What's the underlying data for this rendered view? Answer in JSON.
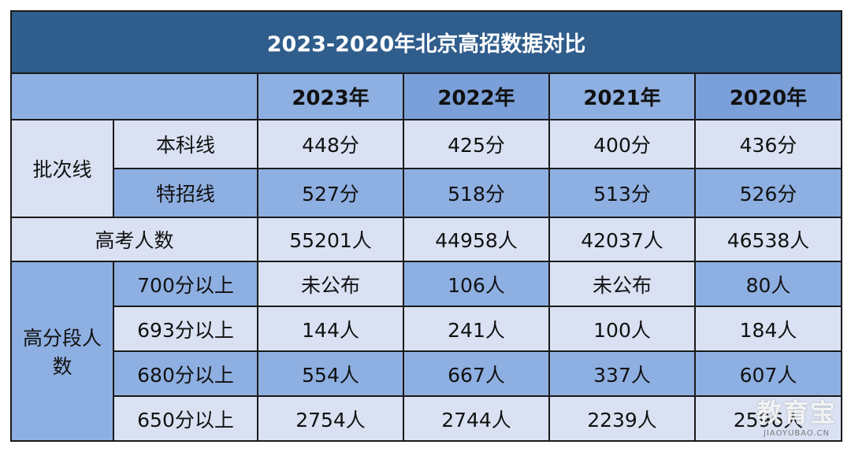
{
  "title": "2023-2020年北京高招数据对比",
  "years": [
    "2023年",
    "2022年",
    "2021年",
    "2020年"
  ],
  "batch_group": "批次线",
  "rows": {
    "benke": {
      "label": "本科线",
      "values": [
        "448分",
        "425分",
        "400分",
        "436分"
      ]
    },
    "tezhao": {
      "label": "特招线",
      "values": [
        "527分",
        "518分",
        "513分",
        "526分"
      ]
    },
    "gaokao": {
      "label": "高考人数",
      "values": [
        "55201人",
        "44958人",
        "42037人",
        "46538人"
      ]
    }
  },
  "high_group": "高分段人数",
  "high_rows": [
    {
      "label": "700分以上",
      "values": [
        "未公布",
        "106人",
        "未公布",
        "80人"
      ]
    },
    {
      "label": "693分以上",
      "values": [
        "144人",
        "241人",
        "100人",
        "184人"
      ]
    },
    {
      "label": "680分以上",
      "values": [
        "554人",
        "667人",
        "337人",
        "607人"
      ]
    },
    {
      "label": "650分以上",
      "values": [
        "2754人",
        "2744人",
        "2239人",
        "2596人"
      ]
    }
  ],
  "watermark": {
    "main": "教育宝",
    "sub": "JIAOYUBAO.CN"
  }
}
